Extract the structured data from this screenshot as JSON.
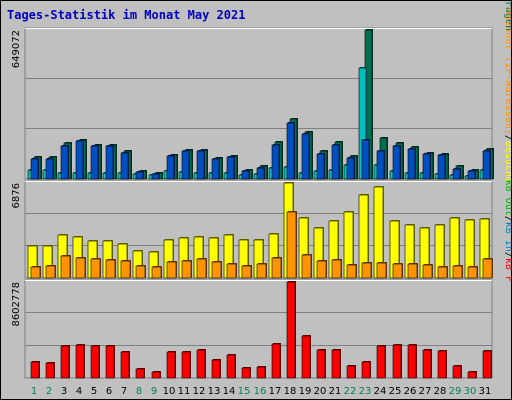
{
  "colors": {
    "background": "#c0c0c0",
    "title": "#0000c0",
    "hits": "#006f4f",
    "files": "#00c0c0",
    "pages": "#004fc0",
    "visits": "#ffff00",
    "sites": "#ff9400",
    "kbytes": "#ff0000",
    "kbin": "#0080c0",
    "kbout": "#00b000",
    "weekday": "#000000",
    "weekend": "#00805a"
  },
  "chart_data": {
    "type": "bar",
    "title": "Tages-Statistik im Monat May 2021",
    "categories": [
      "1",
      "2",
      "3",
      "4",
      "5",
      "6",
      "7",
      "8",
      "9",
      "10",
      "11",
      "12",
      "13",
      "14",
      "15",
      "16",
      "17",
      "18",
      "19",
      "20",
      "21",
      "22",
      "23",
      "24",
      "25",
      "26",
      "27",
      "28",
      "29",
      "30",
      "31"
    ],
    "weekend_days": [
      "1",
      "2",
      "8",
      "9",
      "15",
      "16",
      "22",
      "23",
      "29",
      "30"
    ],
    "panels": [
      {
        "ymax_label": "649072",
        "ylim": [
          0,
          649072
        ],
        "legend": [
          {
            "label": "Anfragen",
            "color": "#006f4f"
          },
          {
            "label": "/",
            "color": "#000000"
          },
          {
            "label": "Dateien",
            "color": "#00c0c0"
          },
          {
            "label": "/",
            "color": "#000000"
          },
          {
            "label": "Seiten",
            "color": "#004fc0"
          }
        ],
        "series": [
          {
            "name": "Anfragen",
            "values": [
              95000,
              95000,
              155000,
              170000,
              150000,
              150000,
              120000,
              35000,
              28000,
              105000,
              125000,
              125000,
              90000,
              100000,
              40000,
              55000,
              160000,
              260000,
              205000,
              120000,
              160000,
              100000,
              649072,
              180000,
              155000,
              140000,
              115000,
              110000,
              55000,
              40000,
              130000
            ]
          },
          {
            "name": "Dateien",
            "values": [
              38000,
              38000,
              28000,
              28000,
              28000,
              28000,
              28000,
              20000,
              18000,
              35000,
              30000,
              28000,
              25000,
              25000,
              18000,
              22000,
              48000,
              52000,
              28000,
              35000,
              38000,
              62000,
              484000,
              62000,
              35000,
              28000,
              28000,
              20000,
              18000,
              15000,
              38000
            ]
          },
          {
            "name": "Seiten",
            "values": [
              87000,
              87000,
              145000,
              165000,
              145000,
              145000,
              115000,
              30000,
              22000,
              100000,
              120000,
              120000,
              85000,
              95000,
              35000,
              50000,
              150000,
              245000,
              195000,
              110000,
              150000,
              90000,
              170000,
              120000,
              145000,
              130000,
              110000,
              105000,
              45000,
              35000,
              120000
            ]
          }
        ]
      },
      {
        "ymax_label": "6876",
        "ylim": [
          0,
          6876
        ],
        "legend": [
          {
            "label": "Besuche",
            "color": "#ffff00"
          },
          {
            "label": "/",
            "color": "#000000"
          },
          {
            "label": "Rechner (IP-Adressen)",
            "color": "#ff9400"
          }
        ],
        "series": [
          {
            "name": "Besuche",
            "values": [
              2280,
              2280,
              3140,
              2970,
              2660,
              2650,
              2440,
              1980,
              1900,
              2720,
              2900,
              2970,
              2900,
              3080,
              2770,
              2770,
              3170,
              6876,
              4350,
              3620,
              4160,
              4810,
              6030,
              6570,
              4140,
              3830,
              3600,
              3800,
              4350,
              4180,
              4250
            ]
          },
          {
            "name": "Rechner (IP-Adressen)",
            "values": [
              800,
              880,
              1620,
              1480,
              1400,
              1320,
              1230,
              850,
              800,
              1180,
              1260,
              1360,
              1160,
              1010,
              880,
              980,
              1450,
              4810,
              1640,
              1260,
              1320,
              910,
              1120,
              1110,
              1010,
              980,
              970,
              760,
              860,
              790,
              1360
            ]
          }
        ]
      },
      {
        "ymax_label": "8602778",
        "ylim": [
          0,
          8602778
        ],
        "legend": [
          {
            "label": "kB F",
            "color": "#ff0000"
          },
          {
            "label": "/",
            "color": "#000000"
          },
          {
            "label": "kB In",
            "color": "#0080c0"
          },
          {
            "label": "/",
            "color": "#000000"
          },
          {
            "label": "kB Out",
            "color": "#00b000"
          }
        ],
        "series": [
          {
            "name": "kB F",
            "values": [
              1420000,
              1300000,
              2830000,
              3000000,
              2890000,
              2830000,
              2330000,
              830000,
              580000,
              2330000,
              2330000,
              2490000,
              1590000,
              2080000,
              860000,
              1020000,
              3010000,
              8602778,
              3760000,
              2490000,
              2500000,
              1060000,
              1400000,
              2830000,
              2940000,
              2920000,
              2490000,
              2460000,
              1050000,
              520000,
              2380000
            ]
          }
        ]
      }
    ]
  }
}
